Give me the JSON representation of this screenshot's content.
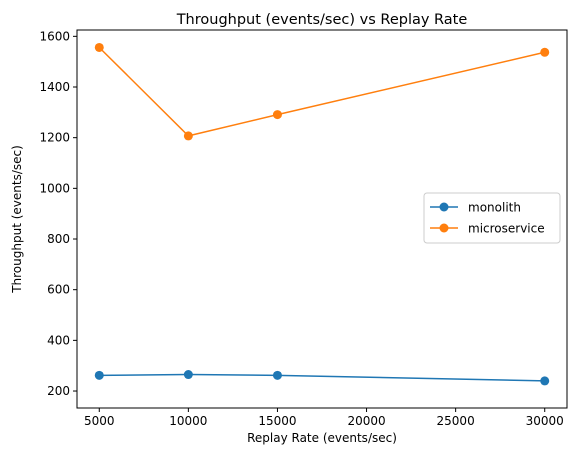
{
  "chart_data": {
    "type": "line",
    "title": "Throughput (events/sec) vs Replay Rate",
    "xlabel": "Replay Rate (events/sec)",
    "ylabel": "Throughput (events/sec)",
    "xlim": [
      3750,
      31250
    ],
    "ylim": [
      133,
      1625
    ],
    "xticks": [
      5000,
      10000,
      15000,
      20000,
      25000,
      30000
    ],
    "yticks": [
      200,
      400,
      600,
      800,
      1000,
      1200,
      1400,
      1600
    ],
    "x": [
      5000,
      10000,
      15000,
      30000
    ],
    "series": [
      {
        "name": "monolith",
        "color": "#1f77b4",
        "values": [
          262,
          265,
          262,
          240
        ]
      },
      {
        "name": "microservice",
        "color": "#ff7f0e",
        "values": [
          1556,
          1207,
          1291,
          1537
        ]
      }
    ],
    "grid": false,
    "legend_position": "center-right"
  }
}
